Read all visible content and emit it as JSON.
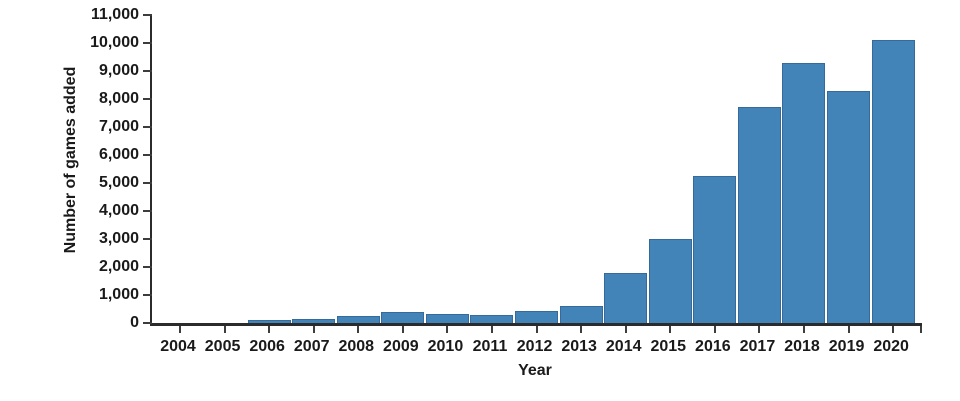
{
  "chart_data": {
    "type": "bar",
    "title": "",
    "xlabel": "Year",
    "ylabel": "Number of games added",
    "categories": [
      "2004",
      "2005",
      "2006",
      "2007",
      "2008",
      "2009",
      "2010",
      "2011",
      "2012",
      "2013",
      "2014",
      "2015",
      "2016",
      "2017",
      "2018",
      "2019",
      "2020"
    ],
    "values": [
      0,
      0,
      100,
      160,
      250,
      390,
      310,
      300,
      440,
      620,
      1800,
      3000,
      5250,
      7700,
      9300,
      8300,
      10100
    ],
    "ylim": [
      0,
      11000
    ],
    "yticks": [
      0,
      1000,
      2000,
      3000,
      4000,
      5000,
      6000,
      7000,
      8000,
      9000,
      10000,
      11000
    ],
    "ytick_labels": [
      "0",
      "1,000",
      "2,000",
      "3,000",
      "4,000",
      "5,000",
      "6,000",
      "7,000",
      "8,000",
      "9,000",
      "10,000",
      "11,000"
    ],
    "grid": false,
    "legend": null,
    "colors": {
      "bar_fill": "#4384b8",
      "bar_edge": "#356a9b",
      "axis": "#2b2b2b",
      "tick": "#3d3d3d",
      "text": "#1a1a1a",
      "background": "#ffffff"
    }
  }
}
